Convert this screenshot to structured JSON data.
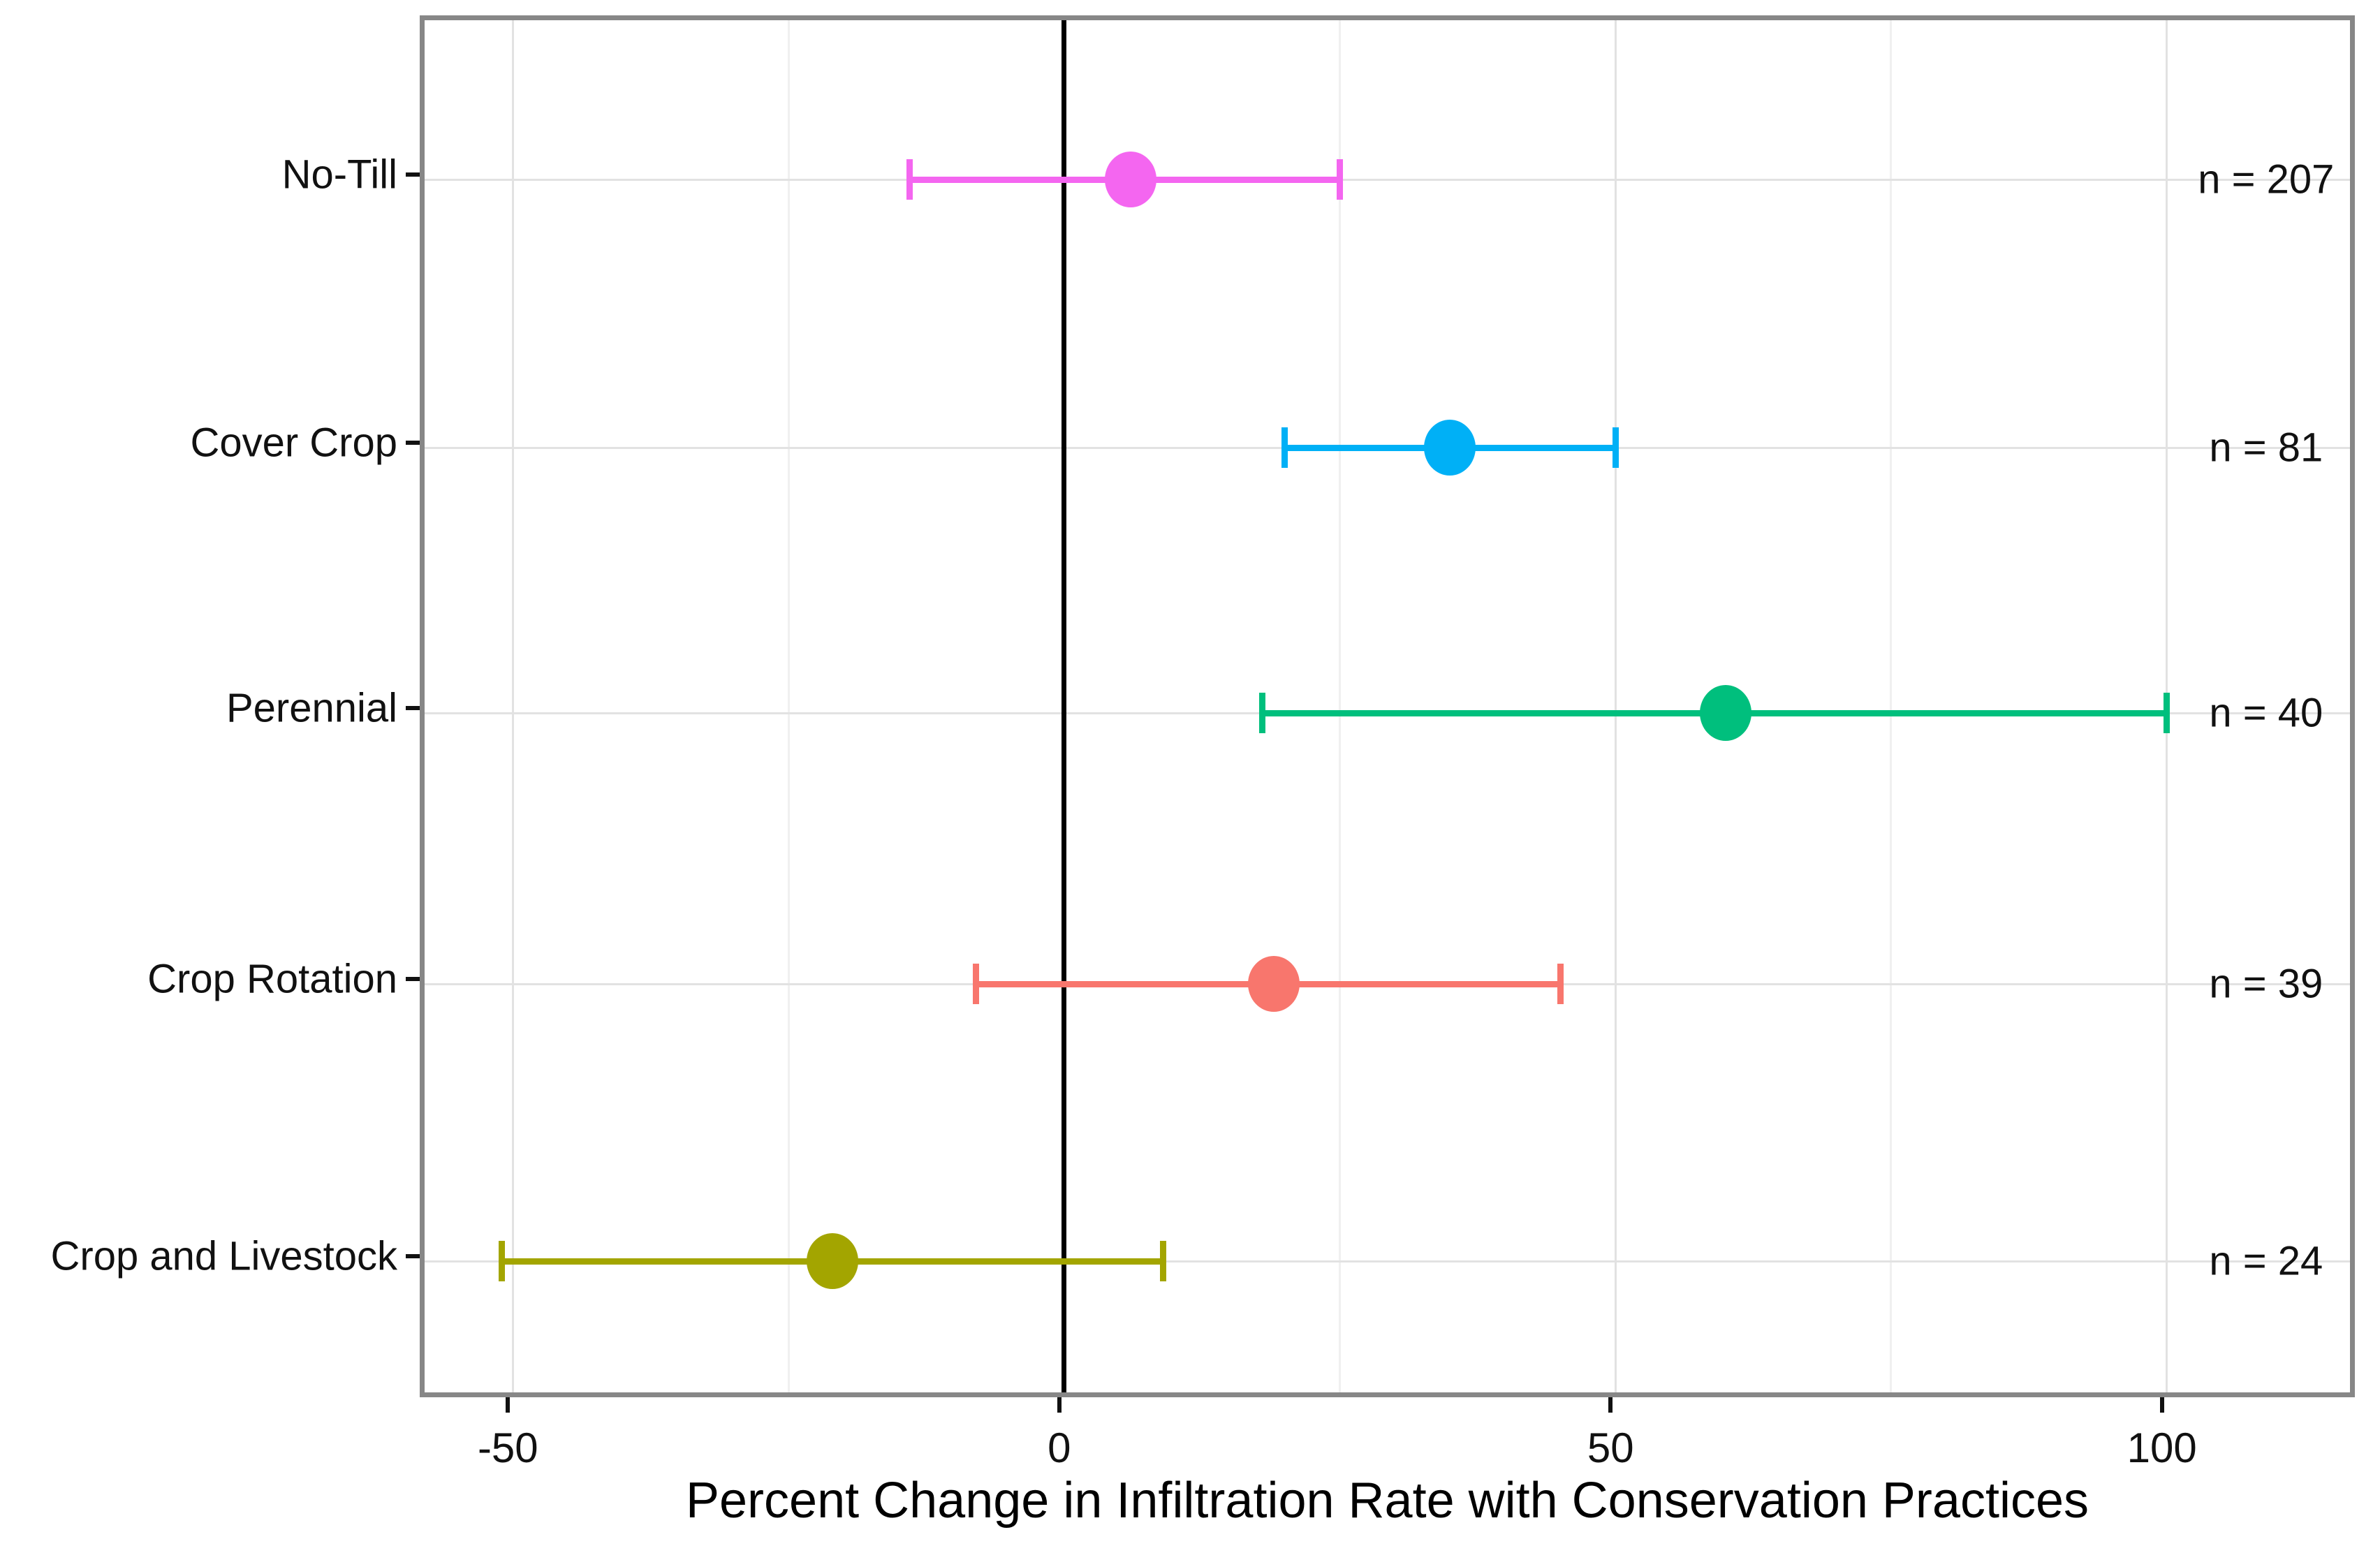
{
  "chart_data": {
    "type": "scatter",
    "subtype": "dot-plot-with-error-bars",
    "title": "",
    "xlabel": "Percent Change in Infiltration Rate with Conservation Practices",
    "ylabel": "",
    "xlim": [
      -58,
      117.5
    ],
    "x_ticks_major": [
      -50,
      0,
      50,
      100
    ],
    "x_tick_labels": [
      "-50",
      "0",
      "50",
      "100"
    ],
    "x_ticks_minor": [
      -25,
      25,
      75
    ],
    "reference_line_x": 0,
    "grid": true,
    "legend": "none",
    "categories": [
      "No-Till",
      "Cover Crop",
      "Perennial",
      "Crop Rotation",
      "Crop and Livestock"
    ],
    "series": [
      {
        "category": "No-Till",
        "point": 6,
        "ci_low": -14,
        "ci_high": 25,
        "n": 207,
        "n_label": "n = 207",
        "color": "#F466F0"
      },
      {
        "category": "Cover Crop",
        "point": 35,
        "ci_low": 20,
        "ci_high": 50,
        "n": 81,
        "n_label": "n = 81",
        "color": "#00B0F6"
      },
      {
        "category": "Perennial",
        "point": 60,
        "ci_low": 18,
        "ci_high": 100,
        "n": 40,
        "n_label": "n = 40",
        "color": "#00BF7D"
      },
      {
        "category": "Crop Rotation",
        "point": 19,
        "ci_low": -8,
        "ci_high": 45,
        "n": 39,
        "n_label": "n = 39",
        "color": "#F8766D"
      },
      {
        "category": "Crop and Livestock",
        "point": -21,
        "ci_low": -51,
        "ci_high": 9,
        "n": 24,
        "n_label": "n = 24",
        "color": "#A3A500"
      }
    ],
    "n_label_x": 109,
    "style": {
      "panel_border_color": "#878787",
      "reference_line_color": "#000000",
      "grid_major_color": "#e2e2e2",
      "grid_minor_color": "#f0f0f0",
      "tick_color": "#111111",
      "text_color": "#111111",
      "background": "#ffffff"
    }
  }
}
